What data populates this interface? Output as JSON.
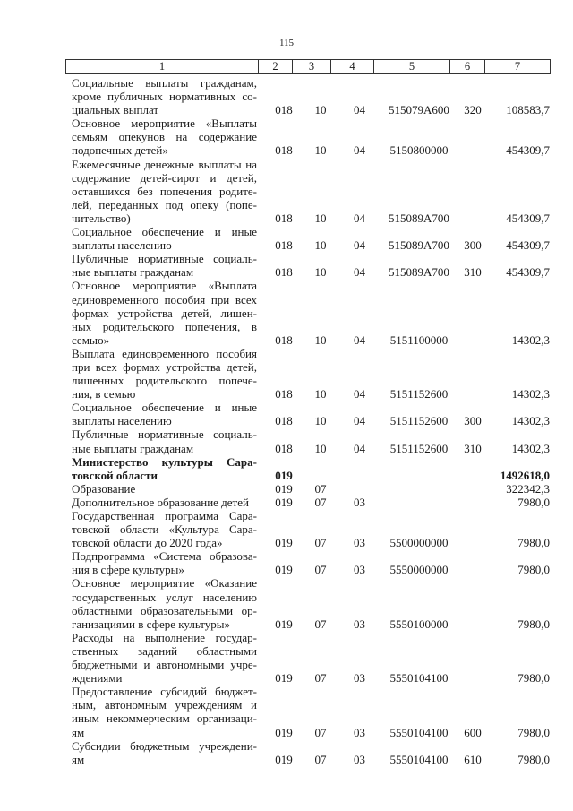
{
  "page_number": "115",
  "header": [
    "1",
    "2",
    "3",
    "4",
    "5",
    "6",
    "7"
  ],
  "rows": [
    {
      "lines": [
        "Социальные выплаты гражданам,",
        "кроме публичных нормативных со-",
        "циальных выплат"
      ],
      "c2": "018",
      "c3": "10",
      "c4": "04",
      "c5": "515079А600",
      "c6": "320",
      "c7": "108583,7"
    },
    {
      "lines": [
        "Основное мероприятие «Выплаты",
        "семьям опекунов на содержание",
        "подопечных детей»"
      ],
      "c2": "018",
      "c3": "10",
      "c4": "04",
      "c5": "5150800000",
      "c6": "",
      "c7": "454309,7"
    },
    {
      "lines": [
        "Ежемесячные денежные выплаты на",
        "содержание детей-сирот и детей,",
        "оставшихся без попечения родите-",
        "лей, переданных под опеку (попе-",
        "чительство)"
      ],
      "c2": "018",
      "c3": "10",
      "c4": "04",
      "c5": "515089А700",
      "c6": "",
      "c7": "454309,7"
    },
    {
      "lines": [
        "Социальное обеспечение и иные",
        "выплаты населению"
      ],
      "c2": "018",
      "c3": "10",
      "c4": "04",
      "c5": "515089А700",
      "c6": "300",
      "c7": "454309,7"
    },
    {
      "lines": [
        "Публичные нормативные социаль-",
        "ные выплаты гражданам"
      ],
      "c2": "018",
      "c3": "10",
      "c4": "04",
      "c5": "515089А700",
      "c6": "310",
      "c7": "454309,7"
    },
    {
      "lines": [
        "Основное мероприятие «Выплата",
        "единовременного пособия при всех",
        "формах устройства детей, лишен-",
        "ных родительского попечения, в",
        "семью»"
      ],
      "c2": "018",
      "c3": "10",
      "c4": "04",
      "c5": "5151100000",
      "c6": "",
      "c7": "14302,3"
    },
    {
      "lines": [
        "Выплата единовременного пособия",
        "при всех формах устройства детей,",
        "лишенных родительского попече-",
        "ния, в семью"
      ],
      "c2": "018",
      "c3": "10",
      "c4": "04",
      "c5": "5151152600",
      "c6": "",
      "c7": "14302,3"
    },
    {
      "lines": [
        "Социальное обеспечение и иные",
        "выплаты населению"
      ],
      "c2": "018",
      "c3": "10",
      "c4": "04",
      "c5": "5151152600",
      "c6": "300",
      "c7": "14302,3"
    },
    {
      "lines": [
        "Публичные нормативные социаль-",
        "ные выплаты гражданам"
      ],
      "c2": "018",
      "c3": "10",
      "c4": "04",
      "c5": "5151152600",
      "c6": "310",
      "c7": "14302,3"
    },
    {
      "lines": [
        "Министерство культуры Сара-",
        "товской области"
      ],
      "c2": "019",
      "c3": "",
      "c4": "",
      "c5": "",
      "c6": "",
      "c7": "1492618,0",
      "bold": true
    },
    {
      "lines": [
        "Образование"
      ],
      "c2": "019",
      "c3": "07",
      "c4": "",
      "c5": "",
      "c6": "",
      "c7": "322342,3"
    },
    {
      "lines": [
        "Дополнительное образование детей"
      ],
      "c2": "019",
      "c3": "07",
      "c4": "03",
      "c5": "",
      "c6": "",
      "c7": "7980,0"
    },
    {
      "lines": [
        "Государственная программа Сара-",
        "товской области «Культура Сара-",
        "товской области до 2020 года»"
      ],
      "c2": "019",
      "c3": "07",
      "c4": "03",
      "c5": "5500000000",
      "c6": "",
      "c7": "7980,0"
    },
    {
      "lines": [
        "Подпрограмма «Система образова-",
        "ния в сфере культуры»"
      ],
      "c2": "019",
      "c3": "07",
      "c4": "03",
      "c5": "5550000000",
      "c6": "",
      "c7": "7980,0"
    },
    {
      "lines": [
        "Основное мероприятие «Оказание",
        "государственных услуг населению",
        "областными образовательными ор-",
        "ганизациями в сфере культуры»"
      ],
      "c2": "019",
      "c3": "07",
      "c4": "03",
      "c5": "5550100000",
      "c6": "",
      "c7": "7980,0"
    },
    {
      "lines": [
        "Расходы на выполнение государ-",
        "ственных заданий областными",
        "бюджетными и автономными учре-",
        "ждениями"
      ],
      "c2": "019",
      "c3": "07",
      "c4": "03",
      "c5": "5550104100",
      "c6": "",
      "c7": "7980,0"
    },
    {
      "lines": [
        "Предоставление субсидий бюджет-",
        "ным, автономным учреждениям и",
        "иным некоммерческим организаци-",
        "ям"
      ],
      "c2": "019",
      "c3": "07",
      "c4": "03",
      "c5": "5550104100",
      "c6": "600",
      "c7": "7980,0"
    },
    {
      "lines": [
        "Субсидии бюджетным учреждени-",
        "ям"
      ],
      "c2": "019",
      "c3": "07",
      "c4": "03",
      "c5": "5550104100",
      "c6": "610",
      "c7": "7980,0"
    }
  ]
}
